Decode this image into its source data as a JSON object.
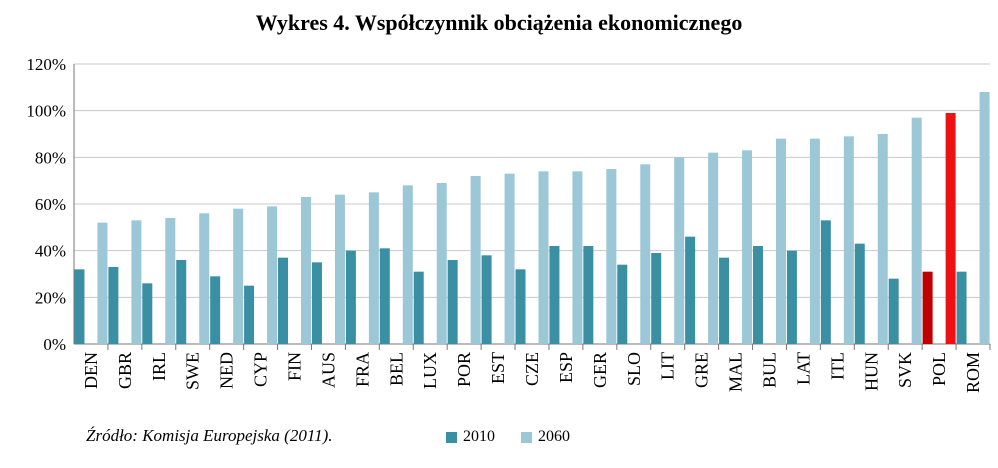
{
  "chart_data": {
    "type": "bar",
    "title": "Wykres 4. Współczynnik obciążenia ekonomicznego",
    "categories": [
      "DEN",
      "GBR",
      "IRL",
      "SWE",
      "NED",
      "CYP",
      "FIN",
      "AUS",
      "FRA",
      "BEL",
      "LUX",
      "POR",
      "EST",
      "CZE",
      "ESP",
      "GER",
      "SLO",
      "LIT",
      "GRE",
      "MAL",
      "BUL",
      "LAT",
      "ITL",
      "HUN",
      "SVK",
      "POL",
      "ROM"
    ],
    "series": [
      {
        "name": "2010",
        "values": [
          32,
          33,
          26,
          36,
          29,
          25,
          37,
          35,
          40,
          41,
          31,
          36,
          38,
          32,
          42,
          42,
          34,
          39,
          46,
          37,
          42,
          40,
          53,
          43,
          28,
          31,
          31
        ]
      },
      {
        "name": "2060",
        "values": [
          52,
          53,
          54,
          56,
          58,
          59,
          63,
          64,
          65,
          68,
          69,
          72,
          73,
          74,
          74,
          75,
          77,
          80,
          82,
          83,
          88,
          88,
          89,
          90,
          97,
          99,
          108
        ]
      }
    ],
    "highlight_category": "POL",
    "colors": {
      "s2010": "#3a8fa3",
      "s2060": "#9bc7d6",
      "highlight2010": "#c00000",
      "highlight2060": "#ee1111",
      "grid": "#c8c8c8",
      "axis": "#777777"
    },
    "yticks": [
      "0%",
      "20%",
      "40%",
      "60%",
      "80%",
      "100%",
      "120%"
    ],
    "ylim": [
      0,
      120
    ],
    "grid": true,
    "legend_position": "bottom"
  },
  "source": "Źródło: Komisja Europejska (2011).",
  "legend": {
    "label_2010": "2010",
    "label_2060": "2060"
  }
}
